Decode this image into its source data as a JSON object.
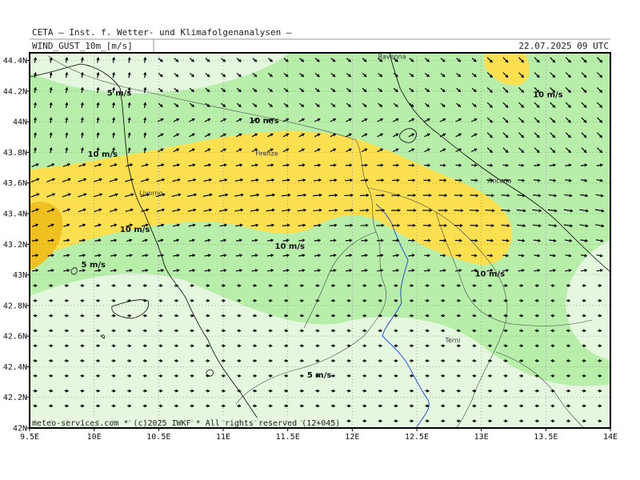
{
  "header": {
    "organization": "CETA — Inst. f. Wetter- und Klimafolgenanalysen —",
    "variable": "WIND_GUST_10m_[m/s]",
    "datetime": "22.07.2025 09 UTC"
  },
  "axes": {
    "x_ticks": [
      "9.5E",
      "10E",
      "10.5E",
      "11E",
      "11.5E",
      "12E",
      "12.5E",
      "13E",
      "13.5E",
      "14E"
    ],
    "y_ticks": [
      "44.4N",
      "44.2N",
      "44N",
      "43.8N",
      "43.6N",
      "43.4N",
      "43.2N",
      "43N",
      "42.8N",
      "42.6N",
      "42.4N",
      "42.2N",
      "42N"
    ]
  },
  "cities": [
    {
      "name": "Ravenna",
      "lon": 12.2,
      "lat": 44.41
    },
    {
      "name": "Firenze",
      "lon": 11.25,
      "lat": 43.78
    },
    {
      "name": "Livorno",
      "lon": 10.35,
      "lat": 43.52
    },
    {
      "name": "Ancona",
      "lon": 13.05,
      "lat": 43.6
    },
    {
      "name": "Terni",
      "lon": 12.72,
      "lat": 42.56
    }
  ],
  "contour_labels": [
    {
      "text": "5 m/s",
      "lon": 10.1,
      "lat": 44.17
    },
    {
      "text": "10 m/s",
      "lon": 11.2,
      "lat": 43.99
    },
    {
      "text": "10 m/s",
      "lon": 13.4,
      "lat": 44.16
    },
    {
      "text": "10 m/s",
      "lon": 9.95,
      "lat": 43.77
    },
    {
      "text": "10 m/s",
      "lon": 10.2,
      "lat": 43.28
    },
    {
      "text": "10 m/s",
      "lon": 11.4,
      "lat": 43.17
    },
    {
      "text": "5 m/s",
      "lon": 9.9,
      "lat": 43.05
    },
    {
      "text": "10 m/s",
      "lon": 12.95,
      "lat": 42.99
    },
    {
      "text": "5 m/s",
      "lon": 11.65,
      "lat": 42.33
    }
  ],
  "legend": {
    "colors": {
      "lt5": "#e6f7e0",
      "b5_10": "#b6eeaa",
      "b10_15": "#fce050",
      "gt15": "#f0c020",
      "land_line": "#000000",
      "river": "#2050e0"
    }
  },
  "footer": "meteo-services.com * (c)2025 IWKF * All rights reserved (12+045)"
}
